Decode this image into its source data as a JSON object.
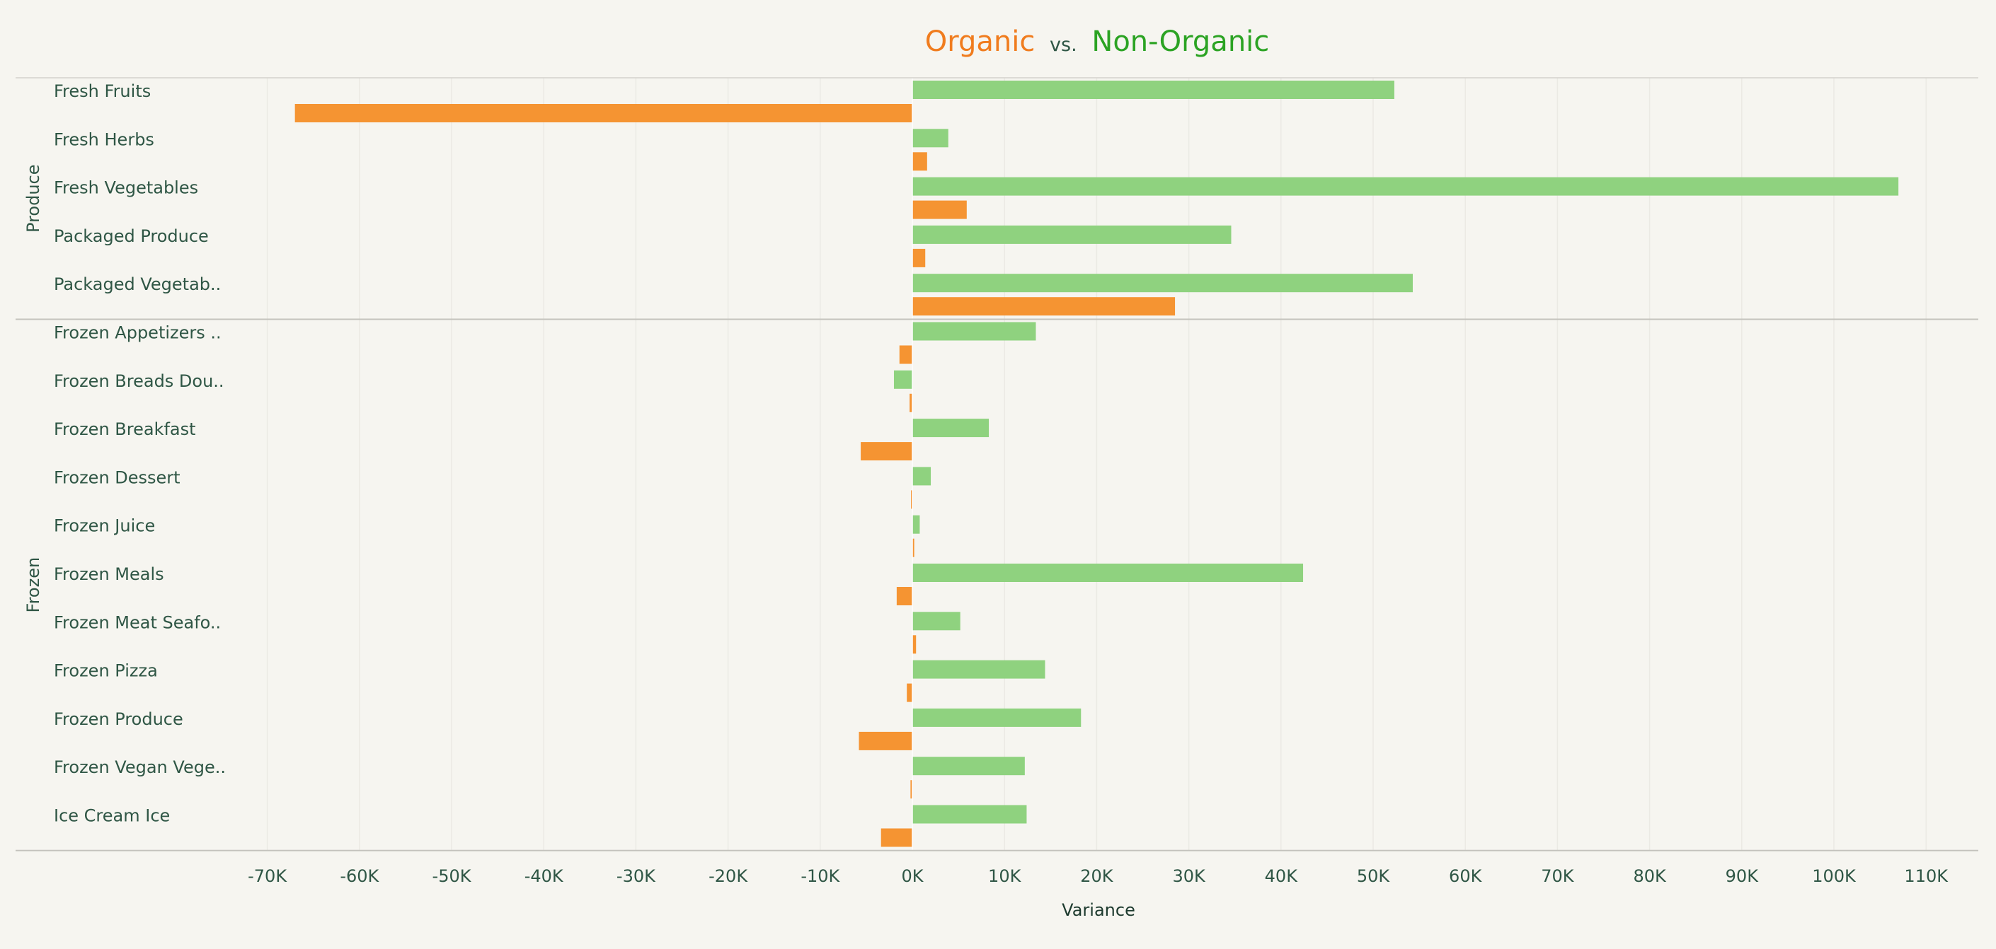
{
  "title": {
    "organic": "Organic",
    "vs": "vs.",
    "non_organic": "Non-Organic"
  },
  "colors": {
    "organic": "#f59432",
    "non_organic": "#8fd27f",
    "title_organic": "#f07c1e",
    "title_non_organic": "#2ba323",
    "text": "#2f5645"
  },
  "chart_data": {
    "type": "bar",
    "orientation": "horizontal",
    "xlabel": "Variance",
    "xlim": [
      -75000,
      115000
    ],
    "x_ticks": [
      "-70K",
      "-60K",
      "-50K",
      "-40K",
      "-30K",
      "-20K",
      "-10K",
      "0K",
      "10K",
      "20K",
      "30K",
      "40K",
      "50K",
      "60K",
      "70K",
      "80K",
      "90K",
      "100K",
      "110K"
    ],
    "x_tick_values": [
      -70000,
      -60000,
      -50000,
      -40000,
      -30000,
      -20000,
      -10000,
      0,
      10000,
      20000,
      30000,
      40000,
      50000,
      60000,
      70000,
      80000,
      90000,
      100000,
      110000
    ],
    "gridlines": true,
    "groups": [
      {
        "name": "Produce",
        "categories": [
          {
            "label": "Fresh Fruits",
            "non_organic": 52300,
            "organic": -67000
          },
          {
            "label": "Fresh Herbs",
            "non_organic": 3900,
            "organic": 1600
          },
          {
            "label": "Fresh Vegetables",
            "non_organic": 107000,
            "organic": 5900
          },
          {
            "label": "Packaged Produce",
            "non_organic": 34600,
            "organic": 1400
          },
          {
            "label": "Packaged Vegetab..",
            "non_organic": 54300,
            "organic": 28500
          }
        ]
      },
      {
        "name": "Frozen",
        "categories": [
          {
            "label": "Frozen Appetizers ..",
            "non_organic": 13400,
            "organic": -1400
          },
          {
            "label": "Frozen Breads Dou..",
            "non_organic": -2000,
            "organic": -300
          },
          {
            "label": "Frozen Breakfast",
            "non_organic": 8300,
            "organic": -5600
          },
          {
            "label": "Frozen Dessert",
            "non_organic": 2000,
            "organic": -150
          },
          {
            "label": "Frozen Juice",
            "non_organic": 800,
            "organic": 200
          },
          {
            "label": "Frozen Meals",
            "non_organic": 42400,
            "organic": -1700
          },
          {
            "label": "Frozen Meat Seafo..",
            "non_organic": 5200,
            "organic": 400
          },
          {
            "label": "Frozen Pizza",
            "non_organic": 14400,
            "organic": -600
          },
          {
            "label": "Frozen Produce",
            "non_organic": 18300,
            "organic": -5800
          },
          {
            "label": "Frozen Vegan Vege..",
            "non_organic": 12200,
            "organic": -200
          },
          {
            "label": "Ice Cream Ice",
            "non_organic": 12400,
            "organic": -3400
          }
        ]
      }
    ]
  }
}
